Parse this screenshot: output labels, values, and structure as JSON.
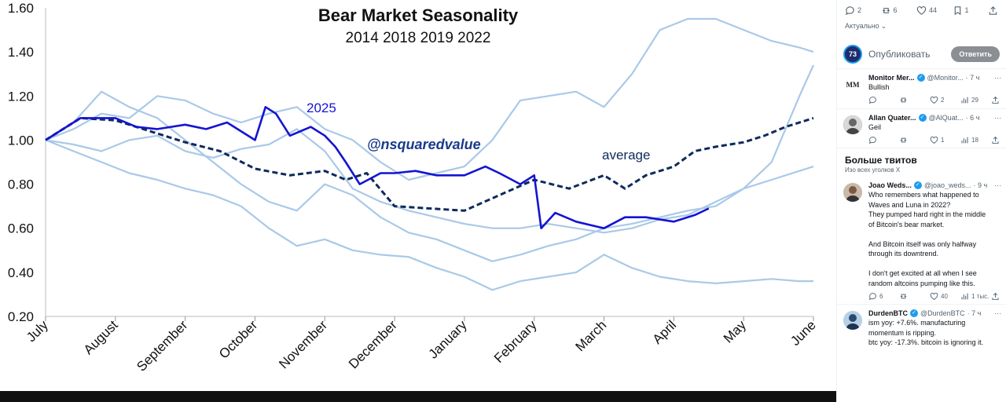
{
  "chart": {
    "title": "Bear Market Seasonality",
    "subtitle": "2014 2018 2019 2022",
    "watermark": "@nsquaredvalue",
    "label_2025": "2025",
    "label_average": "average",
    "colors": {
      "historical": "#a9c9e8",
      "current": "#1414d2",
      "average": "#0d2a5c",
      "text": "#111111"
    }
  },
  "chart_data": {
    "type": "line",
    "title": "Bear Market Seasonality",
    "subtitle": "2014 2018 2019 2022",
    "xlabel": "",
    "ylabel": "",
    "ylim": [
      0.2,
      1.6
    ],
    "xlim": [
      0,
      11
    ],
    "y_ticks": [
      "0.20",
      "0.40",
      "0.60",
      "0.80",
      "1.00",
      "1.20",
      "1.40",
      "1.60"
    ],
    "x_ticks": [
      "July",
      "August",
      "September",
      "October",
      "November",
      "December",
      "January",
      "February",
      "March",
      "April",
      "May",
      "June"
    ],
    "grid": false,
    "legend": "none",
    "series": [
      {
        "name": "2025",
        "style": "current",
        "x": [
          0,
          0.3,
          0.5,
          0.8,
          1,
          1.3,
          1.6,
          2,
          2.3,
          2.6,
          3,
          3.15,
          3.3,
          3.5,
          3.8,
          4,
          4.15,
          4.3,
          4.5,
          4.8,
          5,
          5.3,
          5.6,
          6,
          6.3,
          6.5,
          6.8,
          7,
          7.1,
          7.3,
          7.6,
          8,
          8.3,
          8.6,
          9,
          9.3,
          9.5
        ],
        "y": [
          1.0,
          1.06,
          1.1,
          1.1,
          1.1,
          1.06,
          1.05,
          1.07,
          1.05,
          1.08,
          1.0,
          1.15,
          1.12,
          1.02,
          1.06,
          1.02,
          0.97,
          0.9,
          0.8,
          0.85,
          0.85,
          0.86,
          0.84,
          0.84,
          0.88,
          0.85,
          0.8,
          0.84,
          0.6,
          0.67,
          0.63,
          0.6,
          0.65,
          0.65,
          0.63,
          0.66,
          0.69
        ]
      },
      {
        "name": "average",
        "style": "average",
        "x": [
          0,
          0.5,
          1,
          1.5,
          2,
          2.5,
          3,
          3.5,
          4,
          4.3,
          4.6,
          5,
          5.5,
          6,
          6.5,
          7,
          7.5,
          8,
          8.3,
          8.6,
          9,
          9.3,
          9.6,
          10,
          10.3,
          10.6,
          11
        ],
        "y": [
          1.0,
          1.1,
          1.09,
          1.04,
          0.99,
          0.95,
          0.87,
          0.84,
          0.86,
          0.82,
          0.85,
          0.7,
          0.69,
          0.68,
          0.75,
          0.82,
          0.78,
          0.84,
          0.78,
          0.84,
          0.88,
          0.95,
          0.97,
          0.99,
          1.02,
          1.06,
          1.1
        ]
      },
      {
        "name": "",
        "style": "historical",
        "x": [
          0,
          0.4,
          0.8,
          1.2,
          1.6,
          2,
          2.4,
          2.8,
          3.2,
          3.6,
          4,
          4.4,
          4.8,
          5.2,
          5.6,
          6,
          6.4,
          6.8,
          7.2,
          7.6,
          8,
          8.4,
          8.8,
          9.2,
          9.6,
          10,
          10.4,
          10.8,
          11
        ],
        "y": [
          1.0,
          1.05,
          1.12,
          1.1,
          1.2,
          1.18,
          1.12,
          1.08,
          1.12,
          1.15,
          1.05,
          1.0,
          0.9,
          0.82,
          0.85,
          0.88,
          1.0,
          1.18,
          1.2,
          1.22,
          1.15,
          1.3,
          1.5,
          1.55,
          1.55,
          1.5,
          1.45,
          1.42,
          1.4
        ]
      },
      {
        "name": "",
        "style": "historical",
        "x": [
          0,
          0.4,
          0.8,
          1.2,
          1.6,
          2,
          2.4,
          2.8,
          3.2,
          3.6,
          4,
          4.4,
          4.8,
          5.2,
          5.6,
          6,
          6.4,
          6.8,
          7.2,
          7.6,
          8,
          8.4,
          8.8,
          9.2,
          9.6,
          10,
          10.4,
          10.8,
          11
        ],
        "y": [
          1.0,
          0.95,
          0.9,
          0.85,
          0.82,
          0.78,
          0.75,
          0.7,
          0.6,
          0.52,
          0.55,
          0.5,
          0.48,
          0.47,
          0.42,
          0.38,
          0.32,
          0.36,
          0.38,
          0.4,
          0.48,
          0.42,
          0.38,
          0.36,
          0.35,
          0.36,
          0.37,
          0.36,
          0.36
        ]
      },
      {
        "name": "",
        "style": "historical",
        "x": [
          0,
          0.4,
          0.8,
          1.2,
          1.6,
          2,
          2.4,
          2.8,
          3.2,
          3.6,
          4,
          4.4,
          4.8,
          5.2,
          5.6,
          6,
          6.4,
          6.8,
          7.2,
          7.6,
          8,
          8.4,
          8.8,
          9.2,
          9.6,
          10,
          10.4,
          10.8,
          11
        ],
        "y": [
          1.0,
          1.08,
          1.22,
          1.15,
          1.1,
          1.0,
          0.9,
          0.8,
          0.72,
          0.68,
          0.8,
          0.75,
          0.65,
          0.58,
          0.55,
          0.5,
          0.45,
          0.48,
          0.52,
          0.55,
          0.6,
          0.62,
          0.65,
          0.68,
          0.7,
          0.78,
          0.9,
          1.2,
          1.34
        ]
      },
      {
        "name": "",
        "style": "historical",
        "x": [
          0,
          0.4,
          0.8,
          1.2,
          1.6,
          2,
          2.4,
          2.8,
          3.2,
          3.6,
          4,
          4.4,
          4.8,
          5.2,
          5.6,
          6,
          6.4,
          6.8,
          7.2,
          7.6,
          8,
          8.4,
          8.8,
          9.2,
          9.6,
          10,
          10.4,
          10.8,
          11
        ],
        "y": [
          1.0,
          0.98,
          0.95,
          1.0,
          1.02,
          0.95,
          0.92,
          0.96,
          0.98,
          1.05,
          0.95,
          0.78,
          0.72,
          0.68,
          0.65,
          0.62,
          0.6,
          0.6,
          0.62,
          0.6,
          0.58,
          0.6,
          0.64,
          0.66,
          0.72,
          0.78,
          0.82,
          0.86,
          0.88
        ]
      }
    ]
  },
  "sidebar": {
    "actions": {
      "replies": "2",
      "reposts": "6",
      "likes": "44",
      "bookmarks": "1"
    },
    "sort_label": "Актуально",
    "compose": {
      "avatar_text": "73",
      "placeholder": "Опубликовать",
      "button": "Ответить"
    },
    "replies": [
      {
        "name": "Monitor Mer...",
        "handle": "@Monitor...",
        "time": "· 7 ч",
        "text": "Bullish",
        "stats": {
          "replies": "",
          "reposts": "",
          "likes": "2",
          "views": "29"
        },
        "avatar": "MM"
      },
      {
        "name": "Allan Quater...",
        "handle": "@AlQuat...",
        "time": "· 6 ч",
        "text": "Geil",
        "stats": {
          "replies": "",
          "reposts": "",
          "likes": "1",
          "views": "18"
        },
        "avatar": ""
      }
    ],
    "more": {
      "title": "Больше твитов",
      "subtitle": "Изо всех уголков X"
    },
    "more_tweets": [
      {
        "name": "Joao Weds...",
        "handle": "@joao_weds...",
        "time": "· 9 ч",
        "lines": [
          "Who remembers what happened to",
          "Waves and Luna in 2022?",
          "They pumped hard right in the middle",
          "of Bitcoin's bear market.",
          "",
          "And Bitcoin itself was only halfway",
          "through its downtrend.",
          "",
          "I don't get excited at all when I see",
          "random altcoins pumping like this."
        ],
        "stats": {
          "replies": "6",
          "reposts": "",
          "likes": "40",
          "views": "1 тыс."
        }
      },
      {
        "name": "DurdenBTC",
        "handle": "@DurdenBTC",
        "time": "· 7 ч",
        "lines": [
          "ism yoy: +7.6%. manufacturing",
          "momentum is ripping.",
          "btc yoy: -17.3%. bitcoin is ignoring it."
        ]
      }
    ]
  }
}
